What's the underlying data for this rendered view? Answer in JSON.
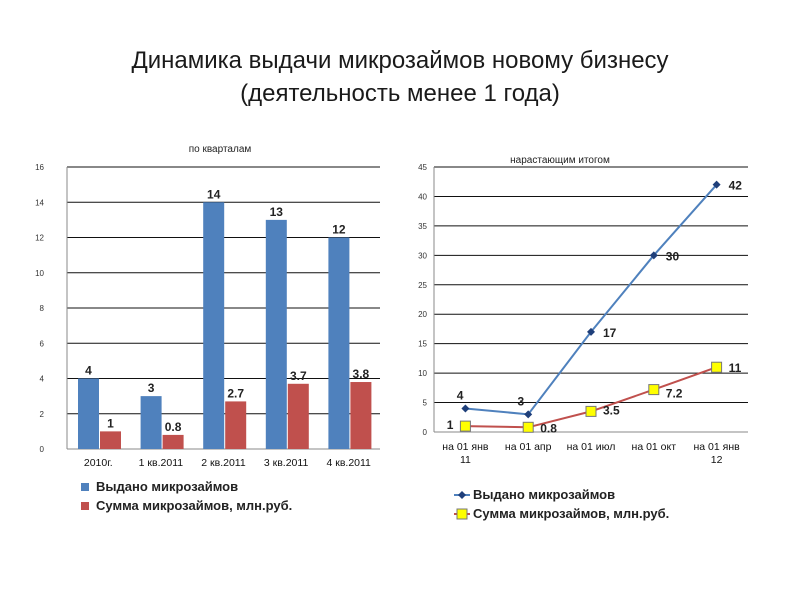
{
  "slide": {
    "title_line1": "Динамика выдачи микрозаймов новому бизнесу",
    "title_line2": "(деятельность менее 1 года)"
  },
  "chart_data": [
    {
      "type": "bar",
      "title": "по кварталам",
      "categories": [
        "2010г.",
        "1 кв.2011",
        "2 кв.2011",
        "3 кв.2011",
        "4 кв.2011"
      ],
      "ylim": [
        0,
        16
      ],
      "yticks": [
        0,
        2,
        4,
        6,
        8,
        10,
        12,
        14,
        16
      ],
      "grid": true,
      "legend_position": "bottom",
      "series": [
        {
          "name": "Выдано микрозаймов",
          "values": [
            4,
            3,
            14,
            13,
            12
          ],
          "labels": [
            "4",
            "3",
            "14",
            "13",
            "12"
          ],
          "color": "#4f81bd"
        },
        {
          "name": "Сумма  микрозаймов, млн.руб.",
          "values": [
            1,
            0.8,
            2.7,
            3.7,
            3.8
          ],
          "labels": [
            "1",
            "0.8",
            "2.7",
            "3.7",
            "3.8"
          ],
          "color": "#c0504d"
        }
      ]
    },
    {
      "type": "line",
      "title": "нарастающим итогом",
      "categories": [
        [
          "на 01 янв",
          "11"
        ],
        [
          "на 01 апр"
        ],
        [
          "на 01 июл"
        ],
        [
          "на 01 окт"
        ],
        [
          "на 01 янв",
          "12"
        ]
      ],
      "ylim": [
        0,
        45
      ],
      "yticks": [
        0,
        5,
        10,
        15,
        20,
        25,
        30,
        35,
        40,
        45
      ],
      "grid": true,
      "legend_position": "bottom",
      "series": [
        {
          "name": "Выдано микрозаймов",
          "values": [
            4,
            3,
            17,
            30,
            42
          ],
          "labels": [
            "4",
            "3",
            "17",
            "30",
            "42"
          ],
          "line_color": "#4f81bd",
          "marker": "diamond",
          "marker_color": "#1f3f7a"
        },
        {
          "name": "Сумма  микрозаймов, млн.руб.",
          "values": [
            1,
            0.8,
            3.5,
            7.2,
            11
          ],
          "labels": [
            "1",
            "0.8",
            "3.5",
            "7.2",
            "11"
          ],
          "line_color": "#c0504d",
          "marker": "square",
          "marker_color": "#ffff00"
        }
      ]
    }
  ]
}
